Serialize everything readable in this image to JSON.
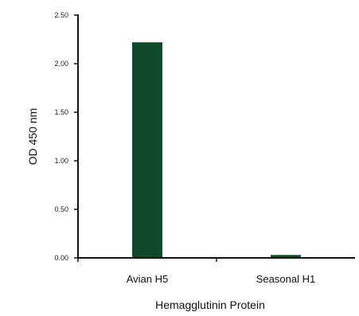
{
  "chart_data": {
    "type": "bar",
    "title": "",
    "categories": [
      "Avian H5",
      "Seasonal H1"
    ],
    "values": [
      2.22,
      0.03
    ],
    "xlabel": "Hemagglutinin Protein",
    "ylabel": "OD 450 nm",
    "ylim": [
      0,
      2.5
    ],
    "yticks": [
      "0.00",
      "0.50",
      "1.00",
      "1.50",
      "2.00",
      "2.50"
    ],
    "bar_color": "#0f4a2a",
    "grid": false,
    "legend": "none"
  }
}
